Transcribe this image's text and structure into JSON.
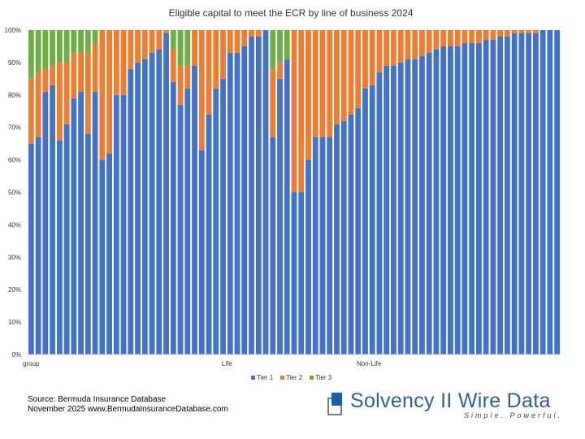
{
  "chart_data": {
    "type": "bar",
    "stacked": true,
    "title": "Eligible capital to meet the ECR by line of business 2024",
    "y_ticks": [
      "0%",
      "10%",
      "20%",
      "30%",
      "40%",
      "50%",
      "60%",
      "70%",
      "80%",
      "90%",
      "100%"
    ],
    "ylim": [
      0,
      100
    ],
    "grid": false,
    "legend_position": "bottom",
    "group_labels": [
      {
        "label": "group",
        "start_index": 0
      },
      {
        "label": "Life",
        "start_index": 28
      },
      {
        "label": "Non-Life",
        "start_index": 47
      }
    ],
    "series": [
      {
        "name": "Tier 1",
        "color": "#4472c4",
        "values": [
          65,
          67,
          81,
          83,
          66,
          71,
          79,
          81,
          68,
          81,
          60,
          62,
          80,
          80,
          88,
          90,
          91,
          93,
          94,
          99,
          84,
          77,
          82,
          89,
          63,
          74,
          82,
          85,
          93,
          93,
          95,
          98,
          98,
          100,
          67,
          85,
          91,
          50,
          50,
          60,
          67,
          67,
          67,
          71,
          72,
          74,
          76,
          82,
          83,
          87,
          89,
          89,
          90,
          91,
          91,
          92,
          93,
          94,
          95,
          95,
          95,
          96,
          96,
          96,
          97,
          97,
          98,
          98,
          99,
          99,
          99,
          99,
          100,
          100,
          100
        ]
      },
      {
        "name": "Tier 2",
        "color": "#ed7d31",
        "values": [
          20,
          20,
          7,
          6,
          24,
          19,
          14,
          12,
          25,
          15,
          40,
          38,
          20,
          20,
          12,
          10,
          9,
          7,
          6,
          1,
          10,
          12,
          7,
          11,
          37,
          26,
          18,
          15,
          7,
          7,
          5,
          2,
          2,
          0,
          21,
          5,
          0,
          50,
          50,
          40,
          33,
          33,
          33,
          29,
          28,
          26,
          24,
          18,
          17,
          13,
          11,
          11,
          10,
          9,
          9,
          8,
          7,
          6,
          5,
          5,
          5,
          4,
          4,
          4,
          3,
          3,
          2,
          2,
          1,
          1,
          1,
          1,
          0,
          0,
          0
        ]
      },
      {
        "name": "Tier 3",
        "color": "#70ad47",
        "values": [
          15,
          13,
          12,
          11,
          10,
          10,
          7,
          7,
          7,
          4,
          0,
          0,
          0,
          0,
          0,
          0,
          0,
          0,
          0,
          0,
          6,
          11,
          11,
          0,
          0,
          0,
          0,
          0,
          0,
          0,
          0,
          0,
          0,
          0,
          12,
          10,
          9,
          0,
          0,
          0,
          0,
          0,
          0,
          0,
          0,
          0,
          0,
          0,
          0,
          0,
          0,
          0,
          0,
          0,
          0,
          0,
          0,
          0,
          0,
          0,
          0,
          0,
          0,
          0,
          0,
          0,
          0,
          0,
          0,
          0,
          0,
          0,
          0,
          0,
          0
        ]
      }
    ]
  },
  "footer": {
    "source_line1": "Source: Bermuda Insurance Database",
    "source_line2": "November 2025 www.BermudaInsuranceDatabase.com",
    "logo_text": "Solvency II Wire Data",
    "logo_tagline": "Simple. Powerful."
  }
}
